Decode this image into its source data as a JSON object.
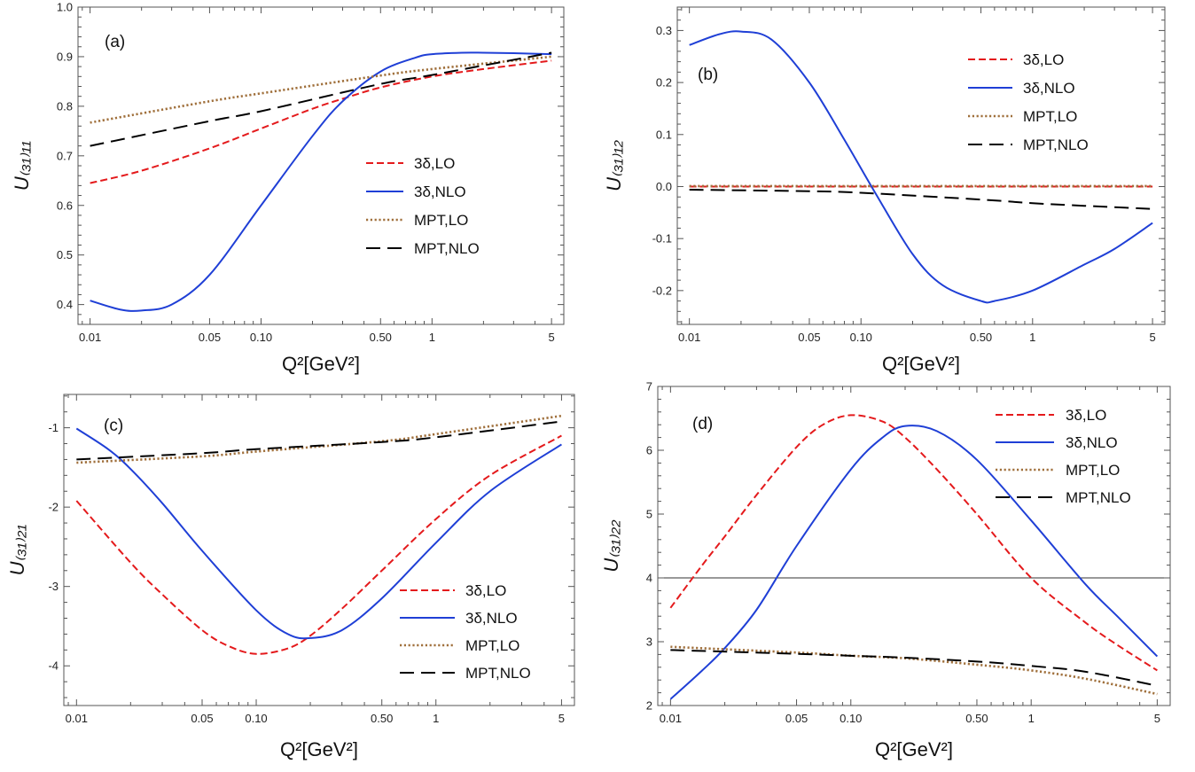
{
  "chart_data": [
    {
      "type": "line",
      "panel_label": "(a)",
      "xlabel": "Q²[GeV²]",
      "ylabel": "U₍₃₁₎₁₁",
      "xscale": "log",
      "xlim": [
        0.0085,
        5.9
      ],
      "ylim": [
        0.36,
        1.0
      ],
      "xticks": [
        0.01,
        0.05,
        0.1,
        0.5,
        1,
        5
      ],
      "xtick_labels": [
        "0.01",
        "0.05",
        "0.10",
        "0.50",
        "1",
        "5"
      ],
      "yticks": [
        0.4,
        0.5,
        0.6,
        0.7,
        0.8,
        0.9,
        1.0
      ],
      "ytick_labels": [
        "0.4",
        "0.5",
        "0.6",
        "0.7",
        "0.8",
        "0.9",
        "1.0"
      ],
      "legend_position": "center-right",
      "series": [
        {
          "name": "3δ,LO",
          "color": "#e41a1c",
          "style": "dashed",
          "x": [
            0.01,
            0.02,
            0.05,
            0.1,
            0.2,
            0.3,
            0.5,
            1,
            2,
            5
          ],
          "y": [
            0.645,
            0.67,
            0.715,
            0.755,
            0.795,
            0.815,
            0.838,
            0.86,
            0.875,
            0.892
          ]
        },
        {
          "name": "3δ,NLO",
          "color": "#1f3fd6",
          "style": "solid",
          "x": [
            0.01,
            0.015,
            0.02,
            0.03,
            0.05,
            0.1,
            0.2,
            0.3,
            0.5,
            0.8,
            1,
            1.5,
            2,
            3,
            5
          ],
          "y": [
            0.408,
            0.39,
            0.388,
            0.4,
            0.46,
            0.6,
            0.74,
            0.81,
            0.87,
            0.898,
            0.905,
            0.908,
            0.908,
            0.907,
            0.905
          ]
        },
        {
          "name": "MPT,LO",
          "color": "#a0703c",
          "style": "dotted",
          "x": [
            0.01,
            0.05,
            0.1,
            0.5,
            1,
            5
          ],
          "y": [
            0.767,
            0.81,
            0.826,
            0.862,
            0.875,
            0.9
          ]
        },
        {
          "name": "MPT,NLO",
          "color": "#000000",
          "style": "longdash",
          "x": [
            0.01,
            0.05,
            0.1,
            0.5,
            1,
            5
          ],
          "y": [
            0.72,
            0.77,
            0.79,
            0.845,
            0.863,
            0.908
          ]
        }
      ]
    },
    {
      "type": "line",
      "panel_label": "(b)",
      "xlabel": "Q²[GeV²]",
      "ylabel": "U₍₃₁₎₁₂",
      "xscale": "log",
      "xlim": [
        0.0085,
        5.9
      ],
      "ylim": [
        -0.265,
        0.345
      ],
      "xticks": [
        0.01,
        0.05,
        0.1,
        0.5,
        1,
        5
      ],
      "xtick_labels": [
        "0.01",
        "0.05",
        "0.10",
        "0.50",
        "1",
        "5"
      ],
      "yticks": [
        -0.2,
        -0.1,
        0.0,
        0.1,
        0.2,
        0.3
      ],
      "ytick_labels": [
        "-0.2",
        "-0.1",
        "0.0",
        "0.1",
        "0.2",
        "0.3"
      ],
      "legend_position": "top-right",
      "series": [
        {
          "name": "3δ,LO",
          "color": "#e41a1c",
          "style": "dashed",
          "x": [
            0.01,
            5
          ],
          "y": [
            0.0,
            0.0
          ]
        },
        {
          "name": "3δ,NLO",
          "color": "#1f3fd6",
          "style": "solid",
          "x": [
            0.01,
            0.015,
            0.02,
            0.03,
            0.05,
            0.08,
            0.12,
            0.2,
            0.3,
            0.5,
            0.6,
            1,
            2,
            3,
            5
          ],
          "y": [
            0.272,
            0.293,
            0.298,
            0.283,
            0.2,
            0.09,
            -0.01,
            -0.13,
            -0.19,
            -0.22,
            -0.22,
            -0.2,
            -0.15,
            -0.12,
            -0.07
          ]
        },
        {
          "name": "MPT,LO",
          "color": "#a0703c",
          "style": "dotted",
          "x": [
            0.01,
            5
          ],
          "y": [
            0.001,
            0.001
          ]
        },
        {
          "name": "MPT,NLO",
          "color": "#000000",
          "style": "longdash",
          "x": [
            0.01,
            0.05,
            0.1,
            0.5,
            1,
            2,
            5
          ],
          "y": [
            -0.006,
            -0.009,
            -0.012,
            -0.025,
            -0.032,
            -0.037,
            -0.043
          ]
        }
      ]
    },
    {
      "type": "line",
      "panel_label": "(c)",
      "xlabel": "Q²[GeV²]",
      "ylabel": "U₍₃₁₎₂₁",
      "xscale": "log",
      "xlim": [
        0.0085,
        5.9
      ],
      "ylim": [
        -4.5,
        -0.58
      ],
      "xticks": [
        0.01,
        0.05,
        0.1,
        0.5,
        1,
        5
      ],
      "xtick_labels": [
        "0.01",
        "0.05",
        "0.10",
        "0.50",
        "1",
        "5"
      ],
      "yticks": [
        -4,
        -3,
        -2,
        -1
      ],
      "ytick_labels": [
        "-4",
        "-3",
        "-2",
        "-1"
      ],
      "legend_position": "bottom-right",
      "series": [
        {
          "name": "3δ,LO",
          "color": "#e41a1c",
          "style": "dashed",
          "x": [
            0.01,
            0.02,
            0.03,
            0.05,
            0.07,
            0.1,
            0.15,
            0.2,
            0.3,
            0.5,
            1,
            2,
            5
          ],
          "y": [
            -1.92,
            -2.7,
            -3.1,
            -3.55,
            -3.75,
            -3.85,
            -3.78,
            -3.62,
            -3.28,
            -2.8,
            -2.15,
            -1.6,
            -1.1
          ]
        },
        {
          "name": "3δ,NLO",
          "color": "#1f3fd6",
          "style": "solid",
          "x": [
            0.01,
            0.015,
            0.02,
            0.03,
            0.05,
            0.1,
            0.15,
            0.2,
            0.3,
            0.5,
            1,
            2,
            5
          ],
          "y": [
            -1.01,
            -1.27,
            -1.52,
            -1.95,
            -2.55,
            -3.3,
            -3.6,
            -3.65,
            -3.55,
            -3.15,
            -2.45,
            -1.8,
            -1.21
          ]
        },
        {
          "name": "MPT,LO",
          "color": "#a0703c",
          "style": "dotted",
          "x": [
            0.01,
            0.05,
            0.1,
            0.5,
            1,
            5
          ],
          "y": [
            -1.44,
            -1.36,
            -1.3,
            -1.17,
            -1.08,
            -0.85
          ]
        },
        {
          "name": "MPT,NLO",
          "color": "#000000",
          "style": "longdash",
          "x": [
            0.01,
            0.05,
            0.1,
            0.5,
            1,
            5
          ],
          "y": [
            -1.4,
            -1.32,
            -1.27,
            -1.18,
            -1.12,
            -0.92
          ]
        }
      ]
    },
    {
      "type": "line",
      "panel_label": "(d)",
      "xlabel": "Q²[GeV²]",
      "ylabel": "U₍₃₁₎₂₂",
      "xscale": "log",
      "xlim": [
        0.0085,
        5.9
      ],
      "ylim": [
        2.0,
        7.0
      ],
      "xticks": [
        0.01,
        0.05,
        0.1,
        0.5,
        1,
        5
      ],
      "xtick_labels": [
        "0.01",
        "0.05",
        "0.10",
        "0.50",
        "1",
        "5"
      ],
      "yticks": [
        2,
        3,
        4,
        5,
        6,
        7
      ],
      "ytick_labels": [
        "2",
        "3",
        "4",
        "5",
        "6",
        "7"
      ],
      "reference_line_y": 4,
      "legend_position": "top-right",
      "series": [
        {
          "name": "3δ,LO",
          "color": "#e41a1c",
          "style": "dashed",
          "x": [
            0.01,
            0.015,
            0.02,
            0.03,
            0.05,
            0.07,
            0.1,
            0.15,
            0.2,
            0.3,
            0.5,
            1,
            2,
            3,
            5
          ],
          "y": [
            3.53,
            4.2,
            4.65,
            5.3,
            6.05,
            6.4,
            6.55,
            6.45,
            6.2,
            5.7,
            5.0,
            4.0,
            3.3,
            2.95,
            2.55
          ]
        },
        {
          "name": "3δ,NLO",
          "color": "#1f3fd6",
          "style": "solid",
          "x": [
            0.01,
            0.015,
            0.02,
            0.03,
            0.05,
            0.1,
            0.15,
            0.2,
            0.3,
            0.5,
            1,
            2,
            3,
            5
          ],
          "y": [
            2.1,
            2.55,
            2.9,
            3.5,
            4.5,
            5.7,
            6.2,
            6.38,
            6.3,
            5.85,
            4.9,
            3.9,
            3.4,
            2.77
          ]
        },
        {
          "name": "MPT,LO",
          "color": "#a0703c",
          "style": "dotted",
          "x": [
            0.01,
            0.05,
            0.1,
            0.2,
            0.5,
            1,
            2,
            5
          ],
          "y": [
            2.92,
            2.83,
            2.78,
            2.74,
            2.64,
            2.55,
            2.42,
            2.18
          ]
        },
        {
          "name": "MPT,NLO",
          "color": "#000000",
          "style": "longdash",
          "x": [
            0.01,
            0.05,
            0.1,
            0.2,
            0.5,
            1,
            2,
            5
          ],
          "y": [
            2.87,
            2.81,
            2.78,
            2.75,
            2.69,
            2.62,
            2.53,
            2.31
          ]
        }
      ]
    }
  ]
}
